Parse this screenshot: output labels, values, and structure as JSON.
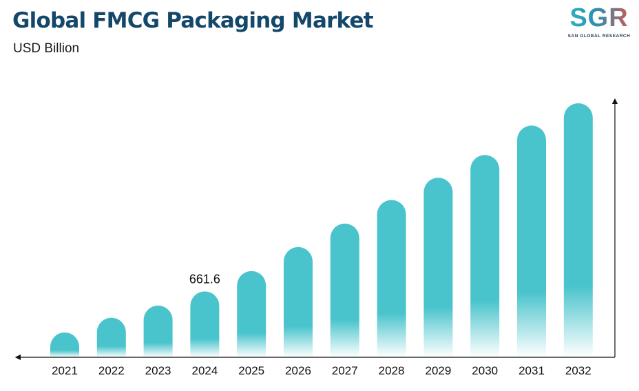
{
  "title": "Global FMCG Packaging Market",
  "subtitle": "USD Billion",
  "logo": {
    "mark": "SGR",
    "tagline": "SAN GLOBAL RESEARCH"
  },
  "colors": {
    "title": "#14486b",
    "bar": "#4ac4cc",
    "bar_base": "#ffffff",
    "axis": "#111111"
  },
  "chart_data": {
    "type": "bar",
    "title": "Global FMCG Packaging Market",
    "subtitle": "USD Billion",
    "categories": [
      "2021",
      "2022",
      "2023",
      "2024",
      "2025",
      "2026",
      "2027",
      "2028",
      "2029",
      "2030",
      "2031",
      "2032"
    ],
    "values": [
      564,
      599,
      628,
      661.6,
      710,
      767,
      823,
      879,
      932,
      986,
      1056,
      1109
    ],
    "data_labels": {
      "2024": "661.6"
    },
    "xlabel": "",
    "ylabel": "",
    "grid": false,
    "legend": "none"
  }
}
